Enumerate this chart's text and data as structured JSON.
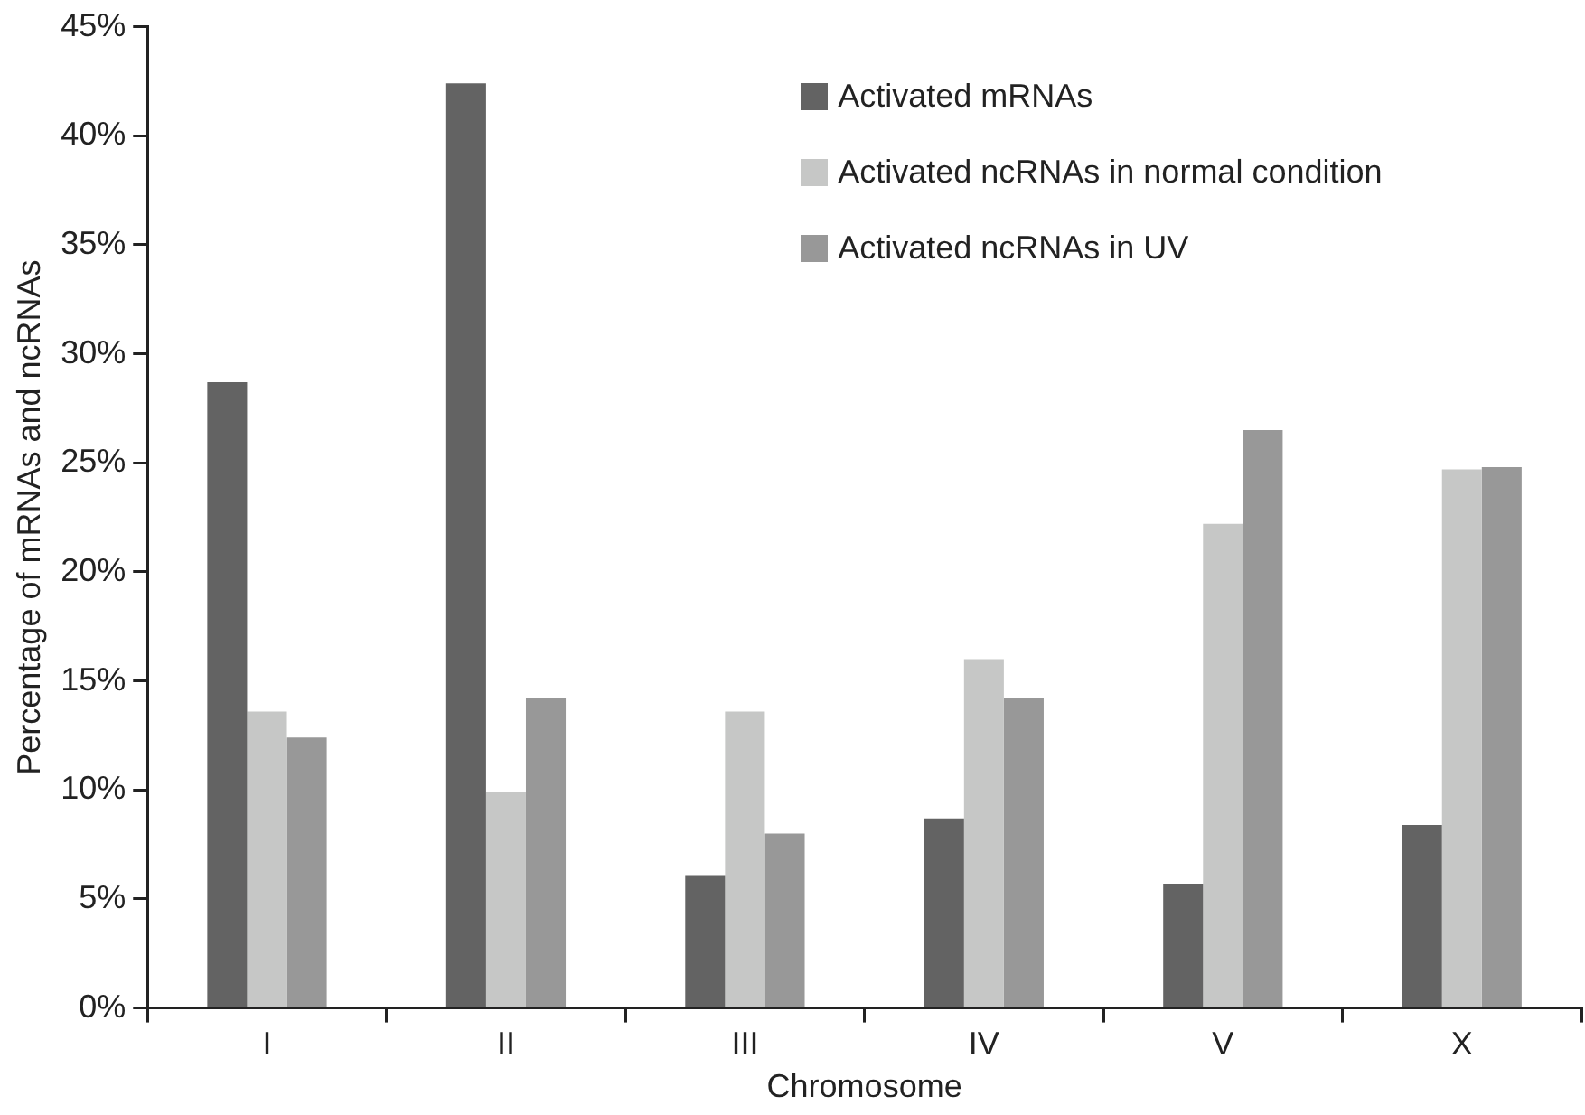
{
  "chart_data": {
    "type": "bar",
    "xlabel": "Chromosome",
    "ylabel": "Percentage of mRNAs and ncRNAs",
    "categories": [
      "I",
      "II",
      "III",
      "IV",
      "V",
      "X"
    ],
    "series": [
      {
        "name": "Activated mRNAs",
        "color": "#636363",
        "values": [
          28.7,
          42.4,
          6.1,
          8.7,
          5.7,
          8.4
        ]
      },
      {
        "name": "Activated ncRNAs in normal condition",
        "color": "#c6c7c6",
        "values": [
          13.6,
          9.9,
          13.6,
          16.0,
          22.2,
          24.7
        ]
      },
      {
        "name": "Activated ncRNAs in UV",
        "color": "#989898",
        "values": [
          12.4,
          14.2,
          8.0,
          14.2,
          26.5,
          24.8
        ]
      }
    ],
    "ylim": [
      0,
      45
    ],
    "yticks": [
      {
        "value": 0,
        "label": "0%"
      },
      {
        "value": 5,
        "label": "5%"
      },
      {
        "value": 10,
        "label": "10%"
      },
      {
        "value": 15,
        "label": "15%"
      },
      {
        "value": 20,
        "label": "20%"
      },
      {
        "value": 25,
        "label": "25%"
      },
      {
        "value": 30,
        "label": "30%"
      },
      {
        "value": 35,
        "label": "35%"
      },
      {
        "value": 40,
        "label": "40%"
      },
      {
        "value": 45,
        "label": "45%"
      }
    ],
    "grid": false,
    "legend": "top right"
  }
}
